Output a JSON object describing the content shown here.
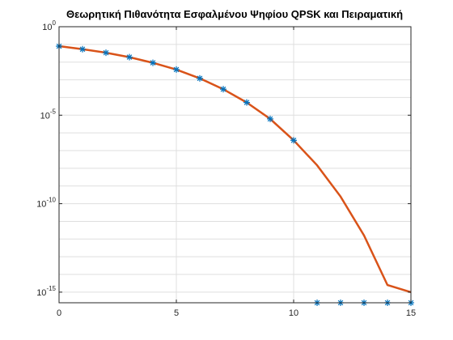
{
  "chart_data": {
    "type": "line",
    "title": "Θεωρητική Πιθανότητα Εσφαλμένου Ψηφίου QPSK και Πειραματική",
    "xlabel": "",
    "ylabel": "",
    "xlim": [
      0,
      15
    ],
    "ylim_log10": [
      -15.6,
      0
    ],
    "yscale": "log",
    "grid": true,
    "x_ticks": [
      0,
      5,
      10,
      15
    ],
    "y_ticks": [
      {
        "base": "10",
        "exp": "0",
        "value_log10": 0
      },
      {
        "base": "10",
        "exp": "-5",
        "value_log10": -5
      },
      {
        "base": "10",
        "exp": "-10",
        "value_log10": -10
      },
      {
        "base": "10",
        "exp": "-15",
        "value_log10": -15
      }
    ],
    "series": [
      {
        "name": "",
        "style": "line",
        "color": "#d95319",
        "x": [
          0,
          1,
          2,
          3,
          4,
          5,
          6,
          7,
          8,
          9,
          10,
          11,
          12,
          13,
          14,
          15
        ],
        "y_log10": [
          -1.1,
          -1.27,
          -1.47,
          -1.72,
          -2.04,
          -2.42,
          -2.92,
          -3.53,
          -4.28,
          -5.21,
          -6.42,
          -7.83,
          -9.6,
          -11.8,
          -14.6,
          -15.0
        ]
      },
      {
        "name": "",
        "style": "marker-star",
        "color": "#0072bd",
        "x": [
          0,
          1,
          2,
          3,
          4,
          5,
          6,
          7,
          8,
          9,
          10,
          11,
          12,
          13,
          14,
          15
        ],
        "y_log10": [
          -1.1,
          -1.27,
          -1.47,
          -1.72,
          -2.04,
          -2.42,
          -2.92,
          -3.53,
          -4.28,
          -5.21,
          -6.42,
          -15.6,
          -15.6,
          -15.6,
          -15.6,
          -15.6
        ]
      }
    ]
  }
}
